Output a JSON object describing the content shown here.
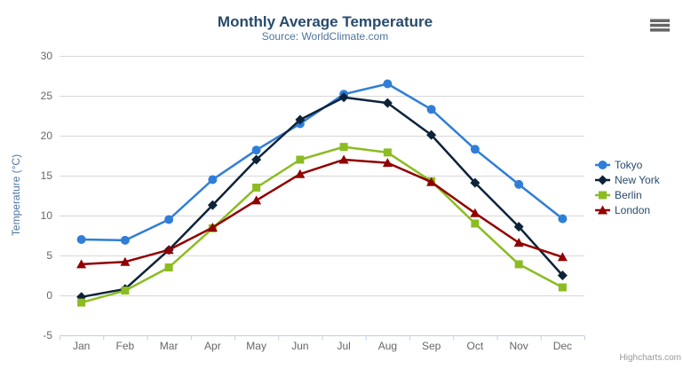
{
  "header": {
    "title": "Monthly Average Temperature",
    "subtitle": "Source: WorldClimate.com"
  },
  "menu": {
    "icon": "hamburger-menu-icon",
    "icon_color": "#666666"
  },
  "credit": {
    "label": "Highcharts.com"
  },
  "colors": {
    "title": "#274b6d",
    "subtitle": "#4d759e",
    "axis_labels": "#666666",
    "yaxis_title": "#4d759e",
    "gridline": "#d8d8d8",
    "xaxis_line": "#c0d0e0",
    "legend_text": "#274b6d",
    "credit_text": "#999999"
  },
  "chart_data": {
    "type": "line",
    "title": "Monthly Average Temperature",
    "subtitle": "Source: WorldClimate.com",
    "xlabel": "",
    "ylabel": "Temperature (°C)",
    "categories": [
      "Jan",
      "Feb",
      "Mar",
      "Apr",
      "May",
      "Jun",
      "Jul",
      "Aug",
      "Sep",
      "Oct",
      "Nov",
      "Dec"
    ],
    "ylim": [
      -5,
      30
    ],
    "yticks": [
      -5,
      0,
      5,
      10,
      15,
      20,
      25,
      30
    ],
    "grid": "horizontal",
    "legend_position": "right",
    "series": [
      {
        "name": "Tokyo",
        "color": "#2f7ed8",
        "marker": "circle",
        "values": [
          7.0,
          6.9,
          9.5,
          14.5,
          18.2,
          21.5,
          25.2,
          26.5,
          23.3,
          18.3,
          13.9,
          9.6
        ]
      },
      {
        "name": "New York",
        "color": "#0d233a",
        "marker": "diamond",
        "values": [
          -0.2,
          0.8,
          5.7,
          11.3,
          17.0,
          22.0,
          24.8,
          24.1,
          20.1,
          14.1,
          8.6,
          2.5
        ]
      },
      {
        "name": "Berlin",
        "color": "#8bbc21",
        "marker": "square",
        "values": [
          -0.9,
          0.6,
          3.5,
          8.4,
          13.5,
          17.0,
          18.6,
          17.9,
          14.3,
          9.0,
          3.9,
          1.0
        ]
      },
      {
        "name": "London",
        "color": "#910000",
        "marker": "triangle",
        "values": [
          3.9,
          4.2,
          5.7,
          8.5,
          11.9,
          15.2,
          17.0,
          16.6,
          14.2,
          10.3,
          6.6,
          4.8
        ]
      }
    ]
  }
}
